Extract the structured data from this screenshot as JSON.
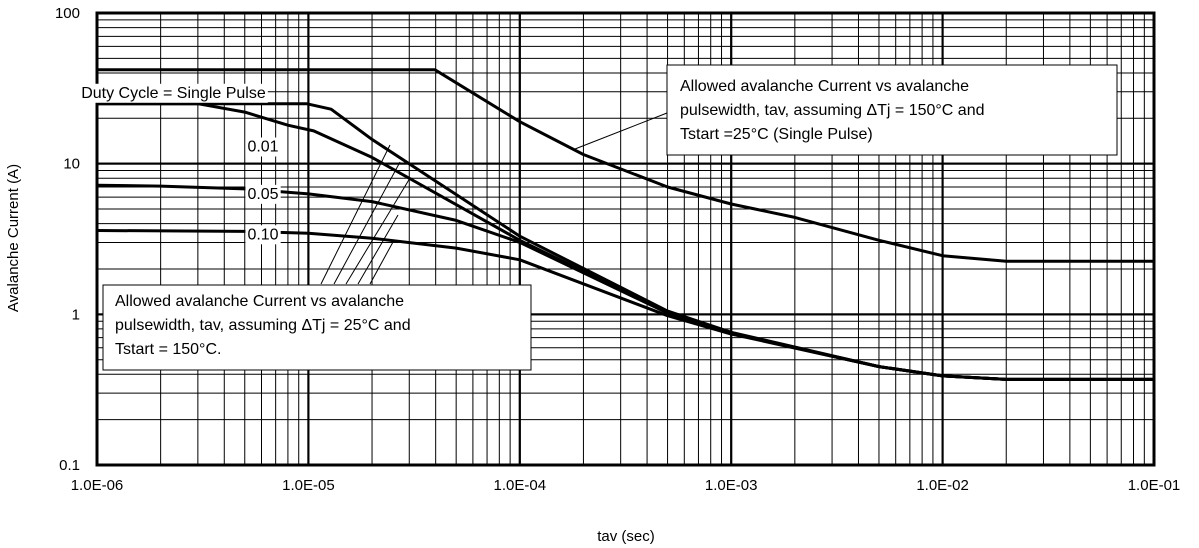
{
  "chart_data": {
    "type": "line",
    "title": "",
    "xlabel": "tav (sec)",
    "ylabel": "Avalanche Current (A)",
    "x_scale": "log",
    "y_scale": "log",
    "xlim": [
      1e-06,
      0.1
    ],
    "ylim": [
      0.1,
      100
    ],
    "x_tick_labels": [
      "1.0E-06",
      "1.0E-05",
      "1.0E-04",
      "1.0E-03",
      "1.0E-02",
      "1.0E-01"
    ],
    "y_tick_labels": [
      "0.1",
      "1",
      "10",
      "100"
    ],
    "grid": true,
    "series": [
      {
        "name": "Single Pulse",
        "points": [
          [
            1e-06,
            42
          ],
          [
            3.97e-05,
            42
          ],
          [
            0.0001,
            19
          ],
          [
            0.0002,
            11.5
          ],
          [
            0.0005,
            7
          ],
          [
            0.001,
            5.4
          ],
          [
            0.002,
            4.4
          ],
          [
            0.005,
            3.1
          ],
          [
            0.01,
            2.45
          ],
          [
            0.02,
            2.25
          ],
          [
            0.1,
            2.25
          ]
        ]
      },
      {
        "name": "Single Pulse",
        "points": [
          [
            1e-06,
            25
          ],
          [
            9.8e-06,
            25
          ],
          [
            1.28e-05,
            23
          ],
          [
            2e-05,
            14.5
          ],
          [
            0.0001,
            3.3
          ],
          [
            0.0005,
            1.05
          ],
          [
            0.001,
            0.76
          ],
          [
            0.005,
            0.45
          ],
          [
            0.01,
            0.39
          ],
          [
            0.02,
            0.37
          ],
          [
            0.1,
            0.37
          ]
        ]
      },
      {
        "name": "0.01",
        "points": [
          [
            1e-06,
            25
          ],
          [
            3e-06,
            25
          ],
          [
            5e-06,
            22
          ],
          [
            8e-06,
            18
          ],
          [
            1.06e-05,
            16.5
          ],
          [
            2e-05,
            11
          ],
          [
            0.0001,
            3.1
          ],
          [
            0.0005,
            1.03
          ],
          [
            0.001,
            0.75
          ],
          [
            0.005,
            0.45
          ],
          [
            0.01,
            0.39
          ],
          [
            0.02,
            0.37
          ],
          [
            0.1,
            0.37
          ]
        ]
      },
      {
        "name": "0.05",
        "points": [
          [
            1e-06,
            7.2
          ],
          [
            2e-06,
            7.1
          ],
          [
            5e-06,
            6.8
          ],
          [
            1e-05,
            6.3
          ],
          [
            2e-05,
            5.6
          ],
          [
            5e-05,
            4.2
          ],
          [
            0.0001,
            3.0
          ],
          [
            0.0005,
            1.02
          ],
          [
            0.001,
            0.75
          ],
          [
            0.005,
            0.45
          ],
          [
            0.01,
            0.39
          ],
          [
            0.02,
            0.37
          ],
          [
            0.1,
            0.37
          ]
        ]
      },
      {
        "name": "0.10",
        "points": [
          [
            1e-06,
            3.6
          ],
          [
            5e-06,
            3.55
          ],
          [
            1e-05,
            3.45
          ],
          [
            2e-05,
            3.2
          ],
          [
            5e-05,
            2.75
          ],
          [
            0.0001,
            2.3
          ],
          [
            0.0005,
            0.98
          ],
          [
            0.001,
            0.74
          ],
          [
            0.005,
            0.45
          ],
          [
            0.01,
            0.39
          ],
          [
            0.02,
            0.37
          ],
          [
            0.1,
            0.37
          ]
        ]
      }
    ],
    "series_labels": [
      {
        "text": "Duty Cycle = Single Pulse",
        "x": 2.3e-06,
        "y": 30
      },
      {
        "text": "0.01",
        "x": 6.1e-06,
        "y": 13.2
      },
      {
        "text": "0.05",
        "x": 6.1e-06,
        "y": 6.4
      },
      {
        "text": "0.10",
        "x": 6.1e-06,
        "y": 3.45
      }
    ],
    "annotations": [
      {
        "lines": [
          "Allowed  avalanche  Current  vs  avalanche",
          "pulsewidth,  tav,  assuming ΔTj = 150°C and",
          "Tstart =25°C (Single Pulse)"
        ]
      },
      {
        "lines": [
          "Allowed  avalanche  Current  vs  avalanche",
          "pulsewidth, tav, assuming ΔTj = 25°C and",
          "Tstart = 150°C."
        ]
      }
    ]
  }
}
